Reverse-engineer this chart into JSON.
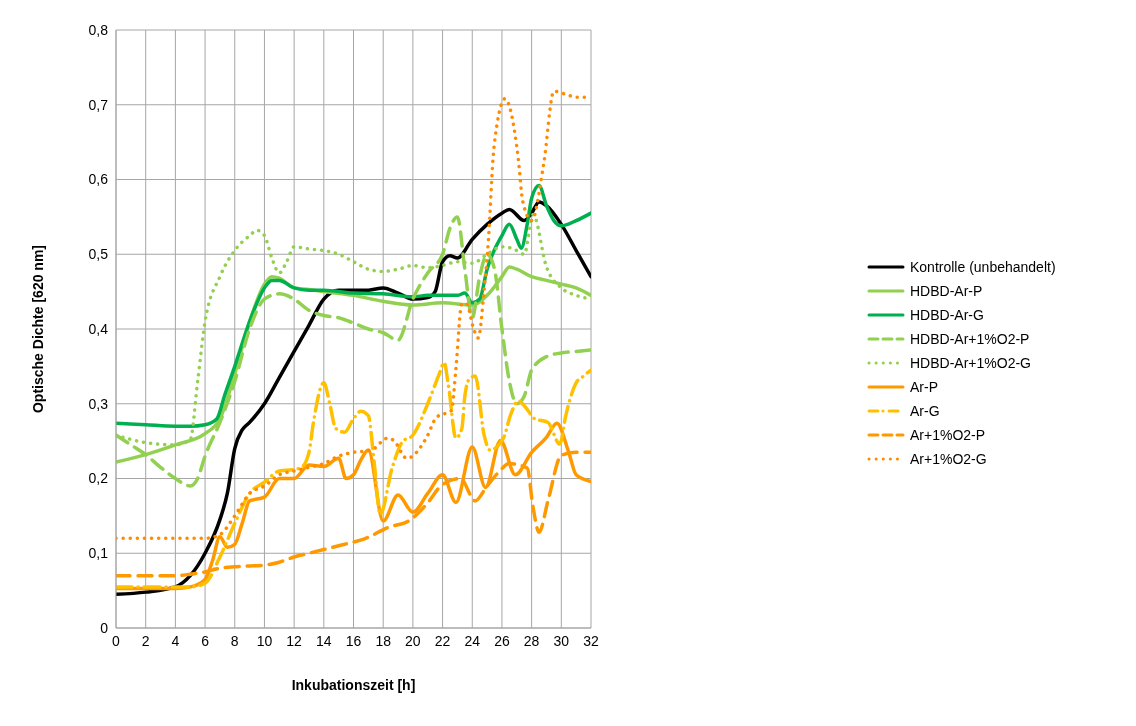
{
  "chart_data": {
    "type": "line",
    "xlabel": "Inkubationszeit [h]",
    "ylabel": "Optische Dichte [620 nm]",
    "xlim": [
      0,
      32
    ],
    "xticks": [
      0,
      2,
      4,
      6,
      8,
      10,
      12,
      14,
      16,
      18,
      20,
      22,
      24,
      26,
      28,
      30,
      32
    ],
    "ylim": [
      0,
      0.8
    ],
    "yticks": [
      0,
      {
        "value": 0.1,
        "label": "0,1"
      },
      {
        "value": 0.2,
        "label": "0,2"
      },
      {
        "value": 0.3,
        "label": "0,3"
      },
      {
        "value": 0.4,
        "label": "0,4"
      },
      {
        "value": 0.5,
        "label": "0,5"
      },
      {
        "value": 0.6,
        "label": "0,6"
      },
      {
        "value": 0.7,
        "label": "0,7"
      },
      {
        "value": 0.8,
        "label": "0,8"
      }
    ],
    "grid": true,
    "legend": "right",
    "marker": "none",
    "series": [
      {
        "name": "Kontrolle (unbehandelt)",
        "color": "#000000",
        "line_style": "solid",
        "x": [
          0,
          2,
          4,
          5,
          6,
          7,
          7.5,
          8,
          8.5,
          9,
          10,
          11,
          12,
          13,
          14,
          15,
          16,
          17,
          18,
          19,
          20,
          21,
          21.5,
          22,
          22.5,
          23,
          24,
          25,
          26,
          26.5,
          27.5,
          28,
          28.5,
          29,
          30,
          31,
          32
        ],
        "values": [
          0.045,
          0.048,
          0.055,
          0.07,
          0.1,
          0.145,
          0.18,
          0.24,
          0.265,
          0.275,
          0.3,
          0.335,
          0.37,
          0.405,
          0.44,
          0.452,
          0.452,
          0.452,
          0.455,
          0.448,
          0.44,
          0.442,
          0.45,
          0.49,
          0.498,
          0.495,
          0.52,
          0.54,
          0.555,
          0.56,
          0.545,
          0.555,
          0.57,
          0.565,
          0.54,
          0.505,
          0.47
        ]
      },
      {
        "name": "HDBD-Ar-P",
        "color": "#92d050",
        "line_style": "solid",
        "x": [
          0,
          2,
          4,
          6,
          7,
          8,
          9,
          10,
          10.5,
          11,
          12,
          13,
          14,
          16,
          18,
          20,
          22,
          24,
          25,
          26,
          26.5,
          27,
          28,
          29,
          30,
          31,
          32
        ],
        "values": [
          0.222,
          0.232,
          0.245,
          0.26,
          0.28,
          0.34,
          0.41,
          0.46,
          0.47,
          0.468,
          0.455,
          0.453,
          0.45,
          0.445,
          0.437,
          0.432,
          0.435,
          0.432,
          0.445,
          0.47,
          0.483,
          0.48,
          0.47,
          0.465,
          0.46,
          0.455,
          0.445
        ]
      },
      {
        "name": "HDBD-Ar-G",
        "color": "#00b050",
        "line_style": "solid",
        "x": [
          0,
          2,
          4,
          5,
          6,
          6.8,
          7.3,
          8,
          9,
          10,
          10.5,
          11,
          12,
          13,
          14,
          16,
          18,
          20,
          21,
          22,
          23,
          23.5,
          24,
          24.5,
          25,
          26,
          26.5,
          27,
          27.3,
          27.7,
          28,
          28.5,
          29,
          29.5,
          30,
          31,
          32
        ],
        "values": [
          0.274,
          0.272,
          0.27,
          0.27,
          0.272,
          0.28,
          0.31,
          0.35,
          0.41,
          0.455,
          0.465,
          0.465,
          0.455,
          0.452,
          0.452,
          0.448,
          0.447,
          0.443,
          0.445,
          0.445,
          0.445,
          0.448,
          0.435,
          0.44,
          0.48,
          0.525,
          0.54,
          0.52,
          0.508,
          0.54,
          0.575,
          0.592,
          0.565,
          0.545,
          0.538,
          0.545,
          0.555
        ]
      },
      {
        "name": "HDBD-Ar+1%O2-P",
        "color": "#92d050",
        "line_style": "dashed",
        "x": [
          0,
          1,
          2,
          3,
          4,
          5,
          5.5,
          6,
          7,
          8,
          9,
          10,
          11,
          12,
          13,
          14,
          15,
          16,
          17,
          18,
          19,
          20,
          21,
          22,
          22.5,
          23,
          23.5,
          24,
          24.5,
          25,
          25.5,
          26,
          26.5,
          27,
          27.5,
          28,
          29,
          30,
          31,
          32
        ],
        "values": [
          0.258,
          0.245,
          0.232,
          0.215,
          0.2,
          0.19,
          0.2,
          0.23,
          0.275,
          0.33,
          0.4,
          0.44,
          0.447,
          0.44,
          0.425,
          0.418,
          0.415,
          0.408,
          0.4,
          0.395,
          0.385,
          0.44,
          0.475,
          0.5,
          0.535,
          0.55,
          0.48,
          0.415,
          0.47,
          0.5,
          0.48,
          0.4,
          0.33,
          0.3,
          0.31,
          0.345,
          0.363,
          0.368,
          0.37,
          0.372
        ]
      },
      {
        "name": "HDBD-Ar+1%O2-G",
        "color": "#92d050",
        "line_style": "dotted",
        "x": [
          0,
          2,
          4,
          5,
          5.5,
          6,
          7,
          8,
          9,
          9.5,
          10,
          10.5,
          11,
          11.5,
          12,
          13,
          14,
          15,
          16,
          17,
          18,
          19,
          20,
          21,
          22,
          23,
          24,
          25,
          26,
          26.8,
          27.5,
          28.1,
          29,
          30,
          31,
          32
        ],
        "values": [
          0.258,
          0.248,
          0.245,
          0.252,
          0.33,
          0.41,
          0.47,
          0.505,
          0.525,
          0.532,
          0.525,
          0.495,
          0.475,
          0.49,
          0.51,
          0.507,
          0.505,
          0.5,
          0.49,
          0.48,
          0.477,
          0.48,
          0.485,
          0.482,
          0.485,
          0.49,
          0.488,
          0.5,
          0.51,
          0.507,
          0.5,
          0.553,
          0.483,
          0.455,
          0.445,
          0.44
        ]
      },
      {
        "name": "Ar-P",
        "color": "#ff9900",
        "line_style": "solid",
        "x": [
          0,
          2,
          4,
          5,
          6,
          6.5,
          7,
          7.5,
          8,
          8.5,
          9,
          10,
          11,
          12,
          13,
          14,
          15,
          15.5,
          16,
          16.5,
          17,
          18,
          19,
          20,
          21,
          22,
          22.9,
          24,
          24.9,
          25.9,
          26.9,
          28,
          29,
          29.7,
          30.5,
          31,
          32
        ],
        "values": [
          0.053,
          0.053,
          0.053,
          0.055,
          0.065,
          0.09,
          0.122,
          0.108,
          0.112,
          0.14,
          0.17,
          0.175,
          0.2,
          0.2,
          0.218,
          0.216,
          0.227,
          0.2,
          0.205,
          0.225,
          0.238,
          0.143,
          0.178,
          0.155,
          0.18,
          0.205,
          0.168,
          0.242,
          0.188,
          0.251,
          0.205,
          0.235,
          0.255,
          0.274,
          0.235,
          0.205,
          0.196
        ]
      },
      {
        "name": "Ar-G",
        "color": "#ffc000",
        "line_style": "dashdot",
        "x": [
          0,
          4,
          5,
          6,
          7,
          8,
          9,
          10,
          11,
          12,
          12.5,
          13,
          13.3,
          14,
          14.4,
          14.8,
          15.4,
          16,
          16.5,
          17,
          17.4,
          17.8,
          18.6,
          19.3,
          20,
          21,
          21.8,
          22.1,
          22.4,
          22.9,
          23.3,
          23.5,
          23.8,
          24.2,
          24.8,
          25.2,
          26.1,
          26.6,
          27.1,
          27.6,
          28.2,
          29.1,
          29.9,
          30.3,
          30.6,
          31,
          31.5,
          32
        ],
        "values": [
          0.055,
          0.055,
          0.055,
          0.06,
          0.095,
          0.14,
          0.18,
          0.195,
          0.21,
          0.212,
          0.215,
          0.235,
          0.275,
          0.328,
          0.3,
          0.267,
          0.262,
          0.28,
          0.29,
          0.284,
          0.22,
          0.152,
          0.214,
          0.249,
          0.258,
          0.3,
          0.341,
          0.355,
          0.324,
          0.254,
          0.267,
          0.31,
          0.333,
          0.337,
          0.258,
          0.238,
          0.254,
          0.286,
          0.304,
          0.295,
          0.28,
          0.275,
          0.246,
          0.284,
          0.307,
          0.328,
          0.337,
          0.345
        ]
      },
      {
        "name": "Ar+1%O2-P",
        "color": "#ff9900",
        "line_style": "dashed",
        "x": [
          0,
          2,
          4,
          5,
          6,
          7,
          8,
          9,
          10,
          11,
          12,
          13,
          14,
          15,
          16,
          16.7,
          18.4,
          19.7,
          20.9,
          22,
          23.2,
          24.2,
          25,
          25.8,
          26.5,
          27.7,
          28.1,
          28.5,
          29.1,
          30,
          31,
          32
        ],
        "values": [
          0.07,
          0.07,
          0.07,
          0.072,
          0.075,
          0.08,
          0.082,
          0.083,
          0.084,
          0.088,
          0.095,
          0.1,
          0.105,
          0.11,
          0.115,
          0.119,
          0.135,
          0.143,
          0.165,
          0.192,
          0.2,
          0.17,
          0.19,
          0.209,
          0.22,
          0.214,
          0.161,
          0.128,
          0.17,
          0.231,
          0.235,
          0.235
        ]
      },
      {
        "name": "Ar+1%O2-G",
        "color": "#ff8c00",
        "line_style": "dotted",
        "x": [
          0,
          2,
          4,
          6,
          7,
          8,
          9,
          10,
          11,
          12,
          13,
          14,
          15,
          16,
          17.2,
          18.3,
          18.7,
          19.6,
          20.9,
          21.6,
          22.6,
          22.9,
          23.3,
          23.6,
          24.1,
          24.4,
          24.8,
          25.1,
          25.4,
          25.7,
          26.2,
          27.1,
          27.4,
          28,
          28.8,
          29.5,
          30.3,
          31,
          32
        ],
        "values": [
          0.12,
          0.12,
          0.12,
          0.12,
          0.125,
          0.15,
          0.18,
          0.19,
          0.205,
          0.21,
          0.215,
          0.22,
          0.23,
          0.235,
          0.238,
          0.254,
          0.251,
          0.227,
          0.254,
          0.282,
          0.291,
          0.347,
          0.434,
          0.434,
          0.4,
          0.388,
          0.452,
          0.522,
          0.628,
          0.677,
          0.708,
          0.628,
          0.571,
          0.545,
          0.619,
          0.718,
          0.714,
          0.71,
          0.71
        ]
      }
    ]
  }
}
